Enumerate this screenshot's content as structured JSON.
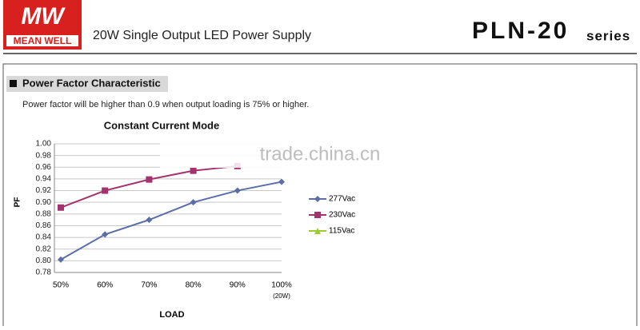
{
  "header": {
    "logo_top": "MW",
    "logo_bottom": "MEAN WELL",
    "title": "20W Single Output LED Power Supply",
    "model": "PLN-20",
    "series": "series"
  },
  "section": {
    "title": "Power Factor Characteristic",
    "note": "Power factor will be higher than 0.9 when output loading is 75% or higher."
  },
  "watermark": "trade.china.cn",
  "chart_data": {
    "type": "line",
    "title": "Constant Current Mode",
    "y_label": "PF",
    "x_label": "LOAD",
    "categories": [
      "50%",
      "60%",
      "70%",
      "80%",
      "90%",
      "100%"
    ],
    "x_tick_note": "(20W)",
    "ylim": [
      0.78,
      1.0
    ],
    "yticks": [
      0.78,
      {
        "value": 0.8,
        "label": "0.80"
      },
      0.82,
      0.84,
      0.86,
      0.88,
      {
        "value": 0.9,
        "label": "0.90"
      },
      0.92,
      0.94,
      0.96,
      0.98,
      {
        "value": 1.0,
        "label": "1.00"
      }
    ],
    "grid": true,
    "series": [
      {
        "name": "277Vac",
        "color": "#5b6fa6",
        "marker": "diamond",
        "values": [
          0.802,
          0.845,
          0.87,
          0.9,
          0.92,
          0.935
        ]
      },
      {
        "name": "230Vac",
        "color": "#a3336f",
        "marker": "square",
        "values": [
          0.891,
          0.92,
          0.939,
          0.954,
          0.962,
          null
        ]
      },
      {
        "name": "115Vac",
        "color": "#9acd32",
        "marker": "triangle",
        "values": [
          null,
          null,
          null,
          null,
          null,
          null
        ]
      }
    ]
  }
}
